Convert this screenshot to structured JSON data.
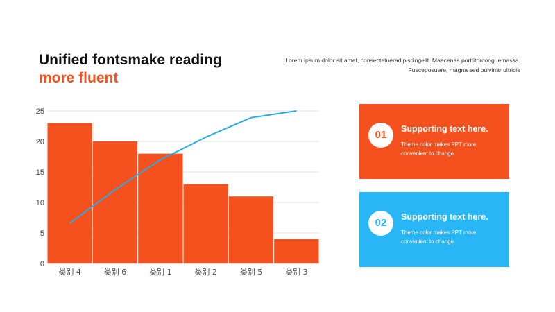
{
  "header": {
    "title_line1": "Unified fontsmake reading",
    "title_line2": "more fluent",
    "description_line1": "Lorem ipsum dolor sit amet, consectetueradipiscingelit.  Maecenas porttitorconguemassa.",
    "description_line2": "Fusceposuere, magna sed pulvinar  ultricie"
  },
  "chart_data": {
    "type": "bar",
    "categories": [
      "类别 4",
      "类别 6",
      "类别 1",
      "类别 2",
      "类别 5",
      "类别 3"
    ],
    "series": [
      {
        "values": [
          23,
          20,
          18,
          13,
          11,
          4
        ],
        "color": "#f4511e"
      }
    ],
    "line": {
      "values": [
        6.6,
        12.1,
        17.0,
        20.7,
        23.9,
        25.0
      ],
      "color": "#29abe2"
    },
    "ylim": [
      0,
      25
    ],
    "yticks": [
      "0",
      "5",
      "10",
      "15",
      "20",
      "25"
    ],
    "grid": true,
    "title": "",
    "xlabel": "",
    "ylabel": ""
  },
  "cards": [
    {
      "number": "01",
      "heading": "Supporting text here.",
      "body_line1": "Theme color makes PPT more",
      "body_line2": "convenient  to change.",
      "color": "#f4511e"
    },
    {
      "number": "02",
      "heading": "Supporting text here.",
      "body_line1": "Theme color makes PPT more",
      "body_line2": "convenient  to change.",
      "color": "#29b6f6"
    }
  ]
}
